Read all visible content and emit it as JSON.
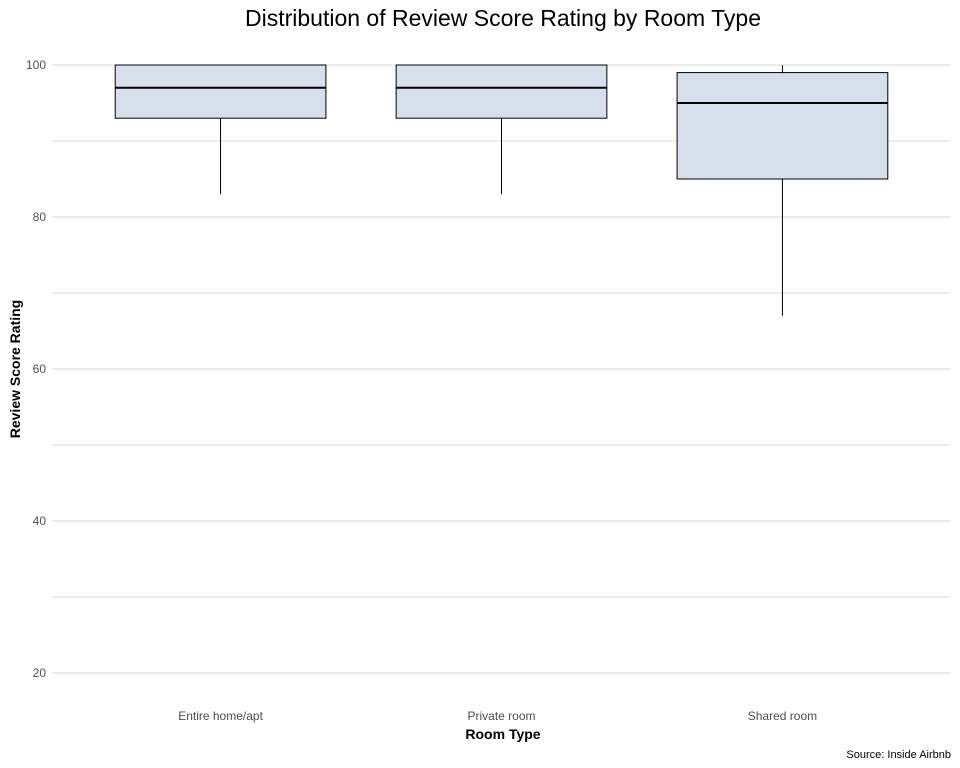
{
  "chart_data": {
    "type": "boxplot",
    "title": "Distribution of Review Score Rating by Room Type",
    "xlabel": "Room Type",
    "ylabel": "Review Score Rating",
    "caption": "Source: Inside Airbnb",
    "ylim": [
      18,
      100
    ],
    "y_ticks": [
      20,
      40,
      60,
      80,
      100
    ],
    "y_minor_gridlines": [
      30,
      50,
      70,
      90
    ],
    "grid": true,
    "categories": [
      "Entire home/apt",
      "Private room",
      "Shared room"
    ],
    "boxes": [
      {
        "category": "Entire home/apt",
        "whisker_low": 83,
        "q1": 93,
        "median": 97,
        "q3": 100,
        "whisker_high": 100
      },
      {
        "category": "Private room",
        "whisker_low": 83,
        "q1": 93,
        "median": 97,
        "q3": 100,
        "whisker_high": 100
      },
      {
        "category": "Shared room",
        "whisker_low": 67,
        "q1": 85,
        "median": 95,
        "q3": 99,
        "whisker_high": 100
      }
    ],
    "box_fill": "#d6e0ec",
    "box_stroke": "#000000",
    "gridline_color": "#d9d9d9"
  }
}
